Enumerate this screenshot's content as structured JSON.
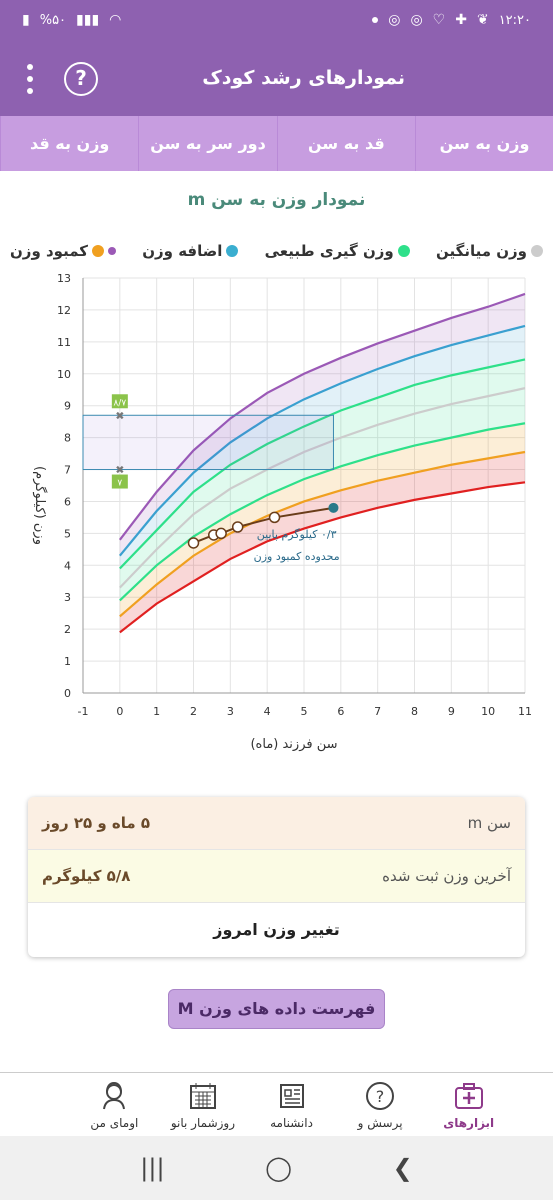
{
  "status_bar": {
    "time": "۱۲:۲۰",
    "battery": "%۵۰"
  },
  "app_bar": {
    "title": "نمودارهای رشد کودک",
    "help_icon": "question-icon",
    "more_icon": "more-vert-icon"
  },
  "tabs": [
    {
      "label": "وزن به سن",
      "active": true
    },
    {
      "label": "قد به سن",
      "active": false
    },
    {
      "label": "دور سر به سن",
      "active": false
    },
    {
      "label": "وزن به قد",
      "active": false
    }
  ],
  "chart_title": "نمودار وزن به سن m",
  "legend": [
    {
      "label": "کمبود وزن",
      "color": "#f0a020"
    },
    {
      "label": "اضافه وزن",
      "color": "#3aaed0"
    },
    {
      "label": "وزن گیری طبیعی",
      "color": "#2ee08a"
    },
    {
      "label": "وزن میانگین",
      "color": "#cccccc"
    }
  ],
  "chart_data": {
    "type": "line",
    "xlabel": "سن فرزند (ماه)",
    "ylabel": "وزن (کیلوگرم)",
    "xlim": [
      -1,
      11
    ],
    "ylim": [
      0,
      13
    ],
    "x_ticks": [
      "-1",
      "0",
      "1",
      "2",
      "3",
      "4",
      "5",
      "6",
      "7",
      "8",
      "9",
      "10",
      "11"
    ],
    "y_ticks": [
      "0",
      "1",
      "2",
      "3",
      "4",
      "5",
      "6",
      "7",
      "8",
      "9",
      "10",
      "11",
      "12",
      "13"
    ],
    "x": [
      0,
      1,
      2,
      3,
      4,
      5,
      6,
      7,
      8,
      9,
      10,
      11
    ],
    "series": [
      {
        "color": "#9b59b6",
        "values": [
          4.8,
          6.3,
          7.6,
          8.6,
          9.4,
          10.0,
          10.5,
          10.95,
          11.35,
          11.75,
          12.1,
          12.5
        ]
      },
      {
        "color": "#3aa0d0",
        "values": [
          4.3,
          5.7,
          6.9,
          7.85,
          8.6,
          9.2,
          9.7,
          10.15,
          10.55,
          10.9,
          11.2,
          11.5
        ]
      },
      {
        "color": "#2ee08a",
        "values": [
          3.9,
          5.1,
          6.3,
          7.15,
          7.8,
          8.35,
          8.85,
          9.25,
          9.65,
          9.95,
          10.2,
          10.45
        ]
      },
      {
        "color": "#cccccc",
        "values": [
          3.3,
          4.5,
          5.6,
          6.4,
          7.0,
          7.55,
          8.0,
          8.4,
          8.75,
          9.05,
          9.3,
          9.55
        ]
      },
      {
        "color": "#2ee08a",
        "values": [
          2.9,
          4.0,
          4.9,
          5.6,
          6.2,
          6.7,
          7.1,
          7.45,
          7.75,
          8.0,
          8.25,
          8.45
        ]
      },
      {
        "color": "#f0a020",
        "values": [
          2.4,
          3.4,
          4.3,
          5.0,
          5.55,
          6.0,
          6.35,
          6.65,
          6.9,
          7.15,
          7.35,
          7.55
        ]
      },
      {
        "color": "#e02020",
        "values": [
          1.9,
          2.8,
          3.5,
          4.2,
          4.75,
          5.15,
          5.5,
          5.8,
          6.05,
          6.25,
          6.45,
          6.6
        ]
      }
    ],
    "child_points": {
      "x": [
        2.0,
        2.55,
        2.75,
        3.2,
        4.2,
        5.8
      ],
      "y": [
        4.7,
        4.95,
        5.0,
        5.2,
        5.5,
        5.8
      ]
    },
    "band_labels": [
      "۸/۷",
      "۷"
    ],
    "band": [
      7.0,
      8.7
    ],
    "annotation": [
      "۰/۳ کیلوگرم پایین",
      "محدوده کمبود وزن"
    ]
  },
  "info": {
    "age_label": "سن m",
    "age_value": "۵ ماه و ۲۵ روز",
    "last_weight_label": "آخرین وزن ثبت شده",
    "last_weight_value": "۵/۸ کیلوگرم",
    "change_weight": "تغییر وزن امروز"
  },
  "list_button": "فهرست داده های وزن M",
  "bottom_nav": [
    {
      "label": "ابزارهای",
      "icon": "medical-kit-icon",
      "active": true
    },
    {
      "label": "پرسش و",
      "icon": "question-circle-icon",
      "active": false
    },
    {
      "label": "دانشنامه",
      "icon": "newspaper-icon",
      "active": false
    },
    {
      "label": "روزشمار بانو",
      "icon": "calendar-icon",
      "active": false
    },
    {
      "label": "اومای من",
      "icon": "woman-avatar-icon",
      "active": false
    }
  ]
}
